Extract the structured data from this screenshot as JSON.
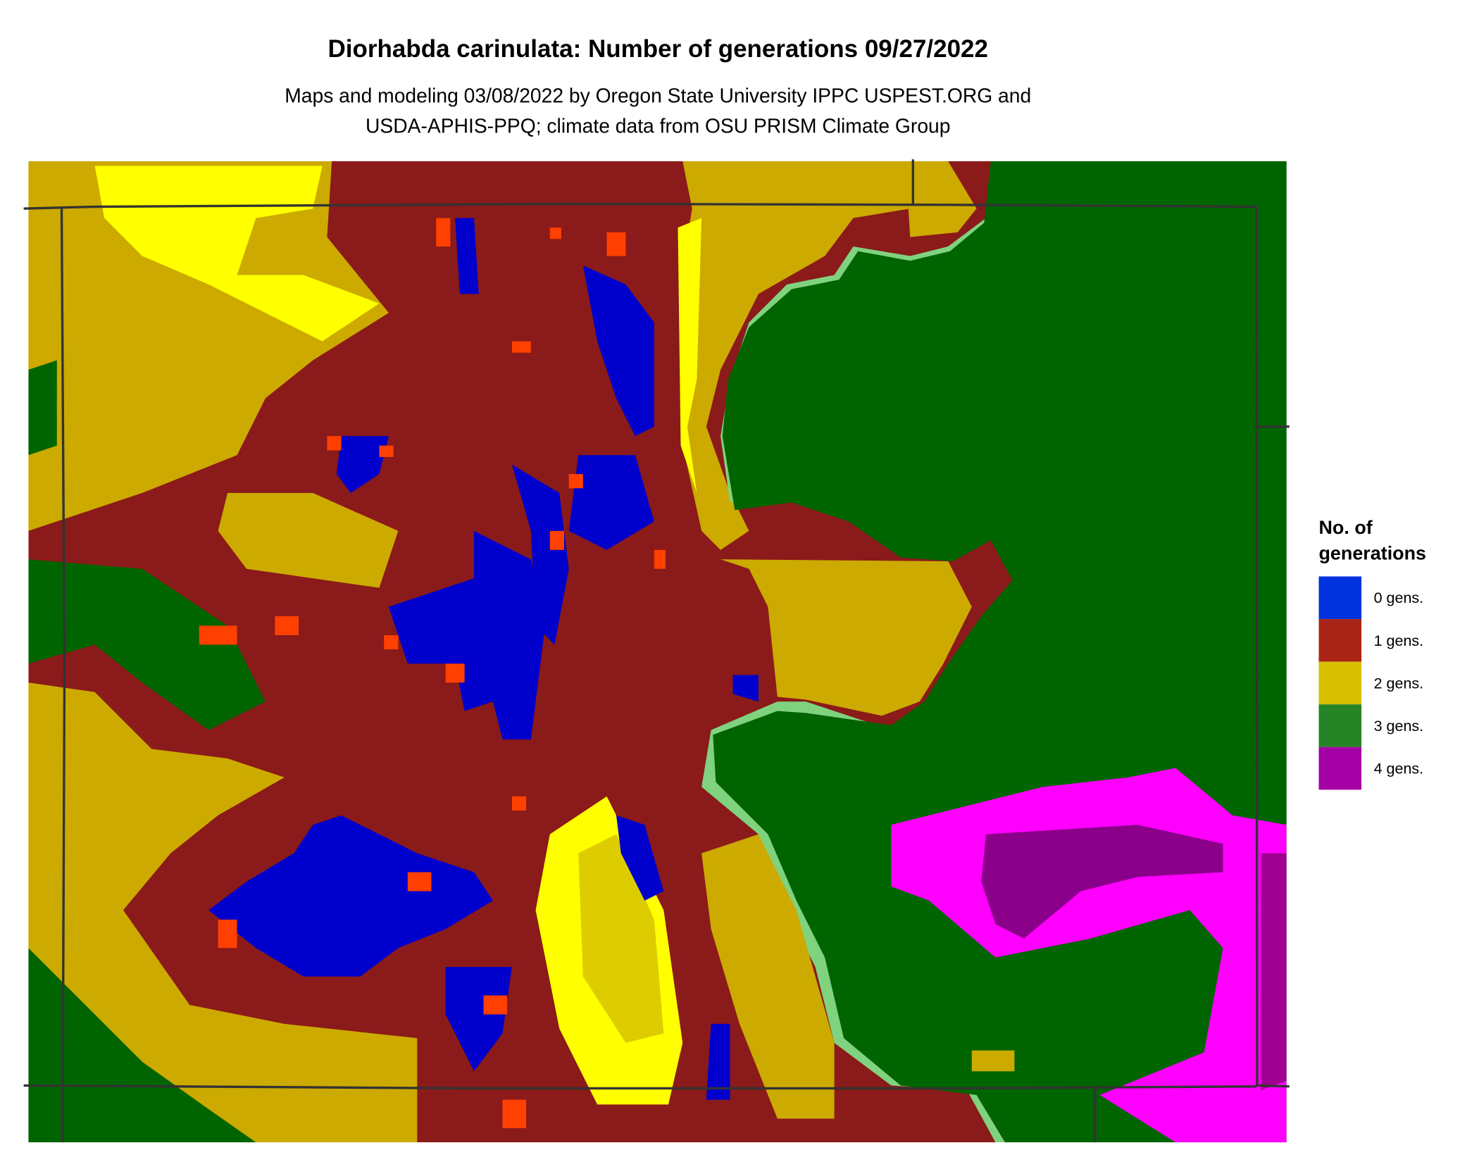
{
  "title": "Diorhabda carinulata: Number of generations 09/27/2022",
  "subtitle_line1": "Maps and modeling 03/08/2022 by Oregon State University IPPC USPEST.ORG and",
  "subtitle_line2": "USDA-APHIS-PPQ; climate data from OSU PRISM Climate Group",
  "legend": {
    "title_line1": "No. of",
    "title_line2": "generations",
    "items": [
      {
        "label": "0 gens.",
        "color": "#0033dd"
      },
      {
        "label": "1 gens.",
        "color": "#a82515"
      },
      {
        "label": "2 gens.",
        "color": "#d8c000"
      },
      {
        "label": "3 gens.",
        "color": "#268426"
      },
      {
        "label": "4 gens.",
        "color": "#a500a5"
      }
    ]
  },
  "map_colors": {
    "zero": "#0000cc",
    "one": "#8b1a1a",
    "one_partial": "#ff4000",
    "two": "#ccaa00",
    "two_partial": "#ffff00",
    "three": "#006400",
    "three_partial": "#7fd37f",
    "four": "#8b008b",
    "four_partial": "#ff00ff",
    "boundary": "#333333"
  }
}
